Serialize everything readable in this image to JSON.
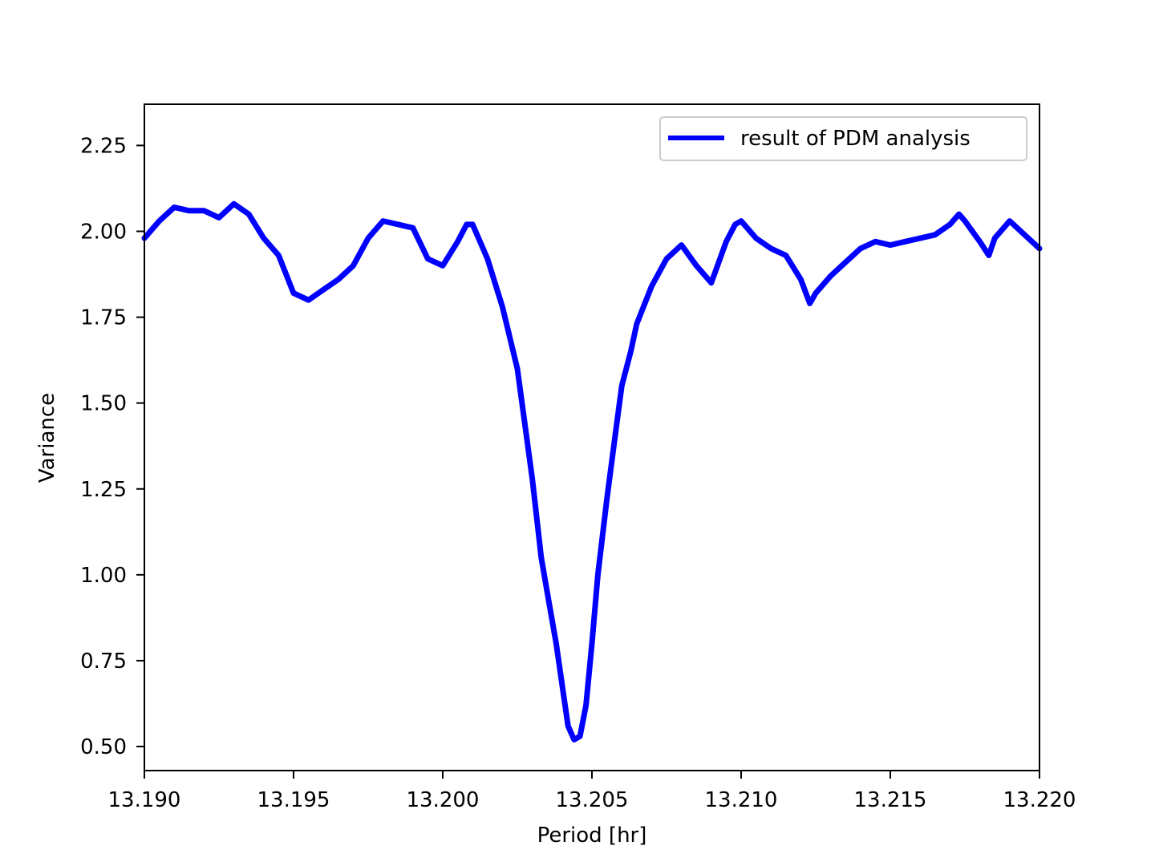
{
  "chart_data": {
    "type": "line",
    "xlabel": "Period [hr]",
    "ylabel": "Variance",
    "xlim": [
      13.19,
      13.22
    ],
    "ylim": [
      0.43,
      2.37
    ],
    "x_ticks": [
      "13.190",
      "13.195",
      "13.200",
      "13.205",
      "13.210",
      "13.215",
      "13.220"
    ],
    "y_ticks": [
      "0.50",
      "0.75",
      "1.00",
      "1.25",
      "1.50",
      "1.75",
      "2.00",
      "2.25"
    ],
    "grid": false,
    "legend": {
      "position": "top-right",
      "entries": [
        "result of PDM analysis"
      ]
    },
    "series": [
      {
        "name": "result of PDM analysis",
        "color": "#0000ff",
        "x": [
          13.19,
          13.1905,
          13.191,
          13.1915,
          13.192,
          13.1925,
          13.193,
          13.1935,
          13.194,
          13.1945,
          13.195,
          13.1955,
          13.196,
          13.1965,
          13.197,
          13.1975,
          13.198,
          13.1985,
          13.199,
          13.1995,
          13.2,
          13.2005,
          13.2008,
          13.201,
          13.2015,
          13.202,
          13.2025,
          13.203,
          13.2033,
          13.2035,
          13.2038,
          13.204,
          13.2042,
          13.2044,
          13.2046,
          13.2048,
          13.205,
          13.2052,
          13.2055,
          13.2058,
          13.206,
          13.2063,
          13.2065,
          13.207,
          13.2075,
          13.208,
          13.2085,
          13.209,
          13.2095,
          13.2098,
          13.21,
          13.2105,
          13.211,
          13.2115,
          13.212,
          13.2123,
          13.2125,
          13.213,
          13.2135,
          13.214,
          13.2145,
          13.215,
          13.2155,
          13.216,
          13.2165,
          13.217,
          13.2173,
          13.2175,
          13.218,
          13.2183,
          13.2185,
          13.219,
          13.2195,
          13.22
        ],
        "values": [
          1.98,
          2.03,
          2.07,
          2.06,
          2.06,
          2.04,
          2.08,
          2.05,
          1.98,
          1.93,
          1.82,
          1.8,
          1.83,
          1.86,
          1.9,
          1.98,
          2.03,
          2.02,
          2.01,
          1.92,
          1.9,
          1.97,
          2.02,
          2.02,
          1.92,
          1.78,
          1.6,
          1.28,
          1.05,
          0.95,
          0.8,
          0.68,
          0.56,
          0.52,
          0.53,
          0.62,
          0.8,
          1.0,
          1.22,
          1.42,
          1.55,
          1.65,
          1.73,
          1.84,
          1.92,
          1.96,
          1.9,
          1.85,
          1.97,
          2.02,
          2.03,
          1.98,
          1.95,
          1.93,
          1.86,
          1.79,
          1.82,
          1.87,
          1.91,
          1.95,
          1.97,
          1.96,
          1.97,
          1.98,
          1.99,
          2.02,
          2.05,
          2.03,
          1.97,
          1.93,
          1.98,
          2.03,
          1.99,
          1.95
        ]
      }
    ]
  }
}
